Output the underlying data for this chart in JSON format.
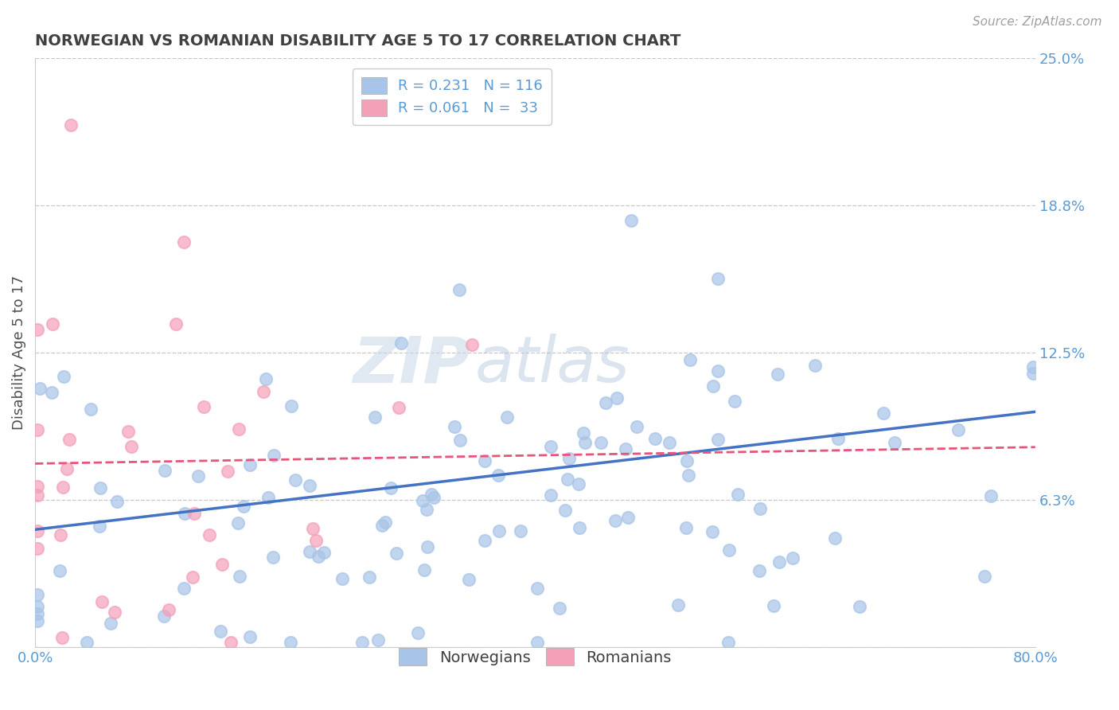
{
  "title": "NORWEGIAN VS ROMANIAN DISABILITY AGE 5 TO 17 CORRELATION CHART",
  "source_text": "Source: ZipAtlas.com",
  "ylabel": "Disability Age 5 to 17",
  "xlim": [
    0.0,
    0.8
  ],
  "ylim": [
    0.0,
    0.25
  ],
  "yticks": [
    0.0,
    0.0625,
    0.125,
    0.1875,
    0.25
  ],
  "ytick_labels": [
    "",
    "6.3%",
    "12.5%",
    "18.8%",
    "25.0%"
  ],
  "xtick_positions": [
    0.0,
    0.1,
    0.2,
    0.3,
    0.4,
    0.5,
    0.6,
    0.7,
    0.8
  ],
  "xtick_labels": [
    "0.0%",
    "",
    "",
    "",
    "",
    "",
    "",
    "",
    "80.0%"
  ],
  "norwegian_R": 0.231,
  "norwegian_N": 116,
  "romanian_R": 0.061,
  "romanian_N": 33,
  "dot_color_norwegian": "#a8c4e8",
  "dot_color_romanian": "#f4a0b8",
  "line_color_norwegian": "#4472c4",
  "line_color_romanian": "#e8547a",
  "legend_label_norwegian": "Norwegians",
  "legend_label_romanian": "Romanians",
  "watermark_zip": "ZIP",
  "watermark_atlas": "atlas",
  "background_color": "#ffffff",
  "grid_color": "#c8c8c8",
  "title_color": "#404040",
  "axis_label_color": "#505050",
  "tick_label_color": "#5b9bd5",
  "legend_text_color": "#404040",
  "legend_R_color": "#5b9bd5",
  "source_color": "#a0a0a0"
}
